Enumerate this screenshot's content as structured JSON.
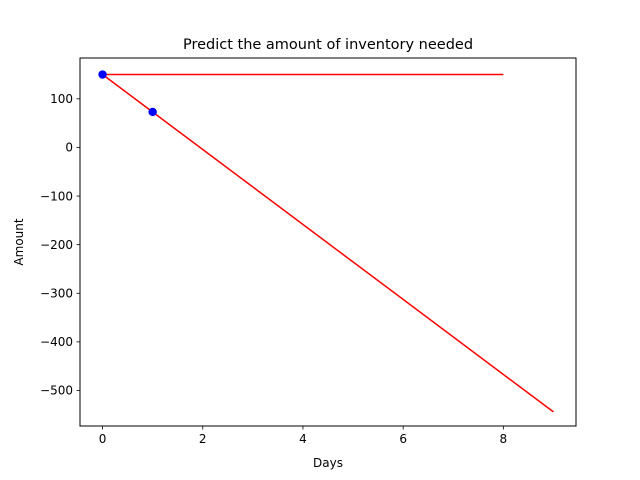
{
  "chart_data": {
    "type": "line",
    "title": "Predict the amount of inventory needed",
    "xlabel": "Days",
    "ylabel": "Amount",
    "xlim": [
      -0.45,
      9.45
    ],
    "ylim": [
      -573,
      184
    ],
    "xticks": [
      0,
      2,
      4,
      6,
      8
    ],
    "yticks": [
      100,
      0,
      -100,
      -200,
      -300,
      -400,
      -500
    ],
    "grid": false,
    "legend": "none",
    "series": [
      {
        "type": "line",
        "color": "#ff0000",
        "x": [
          0,
          8
        ],
        "y": [
          150,
          150
        ]
      },
      {
        "type": "line",
        "color": "#ff0000",
        "x": [
          0,
          9
        ],
        "y": [
          150,
          -544
        ]
      },
      {
        "type": "scatter",
        "color": "#0000ff",
        "x": [
          0,
          1
        ],
        "y": [
          150,
          73
        ]
      }
    ]
  }
}
